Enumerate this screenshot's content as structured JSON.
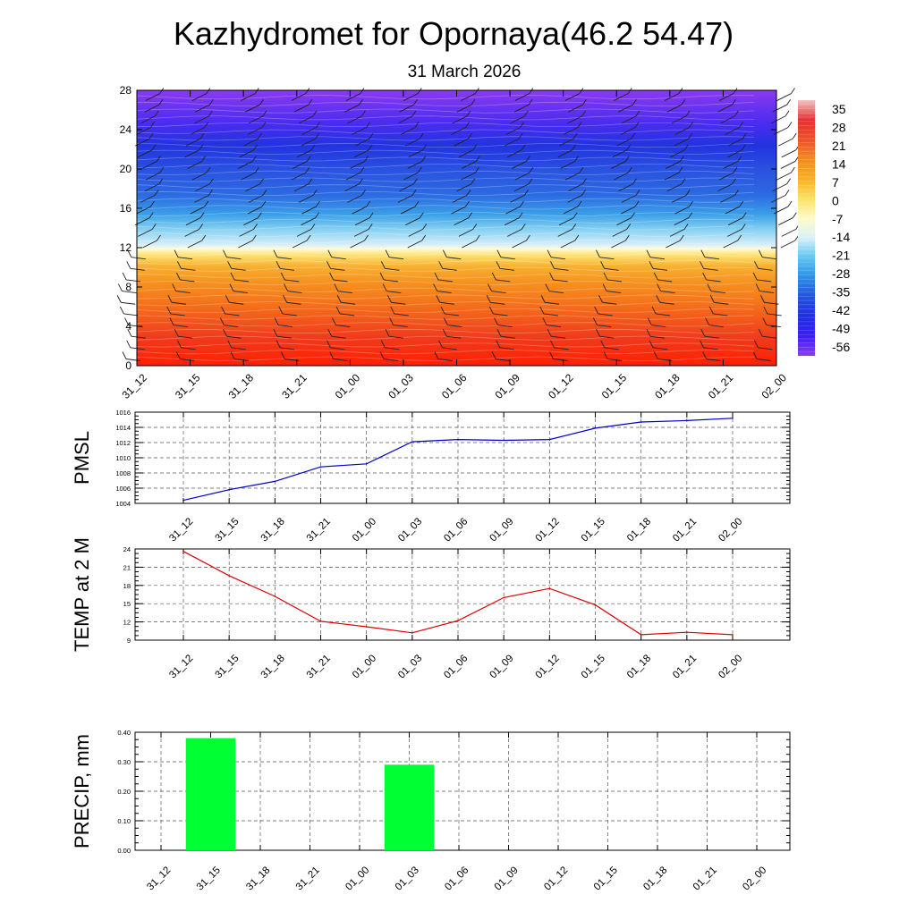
{
  "title": "Kazhydromet for Opornaya(46.2 54.47)",
  "subtitle": "31 March 2026",
  "chart_data": [
    {
      "type": "heatmap",
      "ylim": [
        0,
        28
      ],
      "yticks": [
        "0",
        "4",
        "8",
        "12",
        "16",
        "20",
        "24",
        "28"
      ],
      "x_tick_labels": [
        "31_12",
        "31_15",
        "31_18",
        "31_21",
        "01_00",
        "01_03",
        "01_06",
        "01_09",
        "01_12",
        "01_15",
        "01_18",
        "01_21",
        "02_00"
      ],
      "colorbar_labels": [
        "35",
        "28",
        "21",
        "14",
        "7",
        "0",
        "-7",
        "-14",
        "-21",
        "-28",
        "-35",
        "-42",
        "-49",
        "-56"
      ],
      "colorbar_stops": [
        "#f2c2c2",
        "#e63030",
        "#f0502a",
        "#f38a1e",
        "#f7b020",
        "#fbe260",
        "#fffbc8",
        "#d9f1fb",
        "#5fc5f0",
        "#2a8fe8",
        "#2453e0",
        "#1e2fe0",
        "#3a1ef0",
        "#8a3cf0"
      ],
      "grid": false,
      "wind_barbs": true
    },
    {
      "type": "line",
      "ylabel": "PMSL",
      "ylim": [
        1004,
        1016
      ],
      "yticks": [
        "1004",
        "1006",
        "1008",
        "1010",
        "1012",
        "1014",
        "1016"
      ],
      "categories": [
        "31_12",
        "31_15",
        "31_18",
        "31_21",
        "01_00",
        "01_03",
        "01_06",
        "01_09",
        "01_12",
        "01_15",
        "01_18",
        "01_21",
        "02_00"
      ],
      "values": [
        1004.4,
        1005.8,
        1006.9,
        1008.8,
        1009.2,
        1012.1,
        1012.4,
        1012.3,
        1012.4,
        1013.9,
        1014.7,
        1014.9,
        1015.2
      ],
      "color": "#0000cc",
      "grid": true
    },
    {
      "type": "line",
      "ylabel": "TEMP at 2 M",
      "ylim": [
        9,
        24
      ],
      "yticks": [
        "9",
        "12",
        "15",
        "18",
        "21",
        "24"
      ],
      "categories": [
        "31_12",
        "31_15",
        "31_18",
        "31_21",
        "01_00",
        "01_03",
        "01_06",
        "01_09",
        "01_12",
        "01_15",
        "01_18",
        "01_21",
        "02_00"
      ],
      "values": [
        23.6,
        19.6,
        16.2,
        12.1,
        11.2,
        10.2,
        12.2,
        16.0,
        17.5,
        14.8,
        9.9,
        10.3,
        9.9
      ],
      "color": "#dd0000",
      "grid": true
    },
    {
      "type": "bar",
      "ylabel": "PRECIP, mm",
      "ylim": [
        0,
        0.4
      ],
      "yticks": [
        "0.00",
        "0.10",
        "0.20",
        "0.30",
        "0.40"
      ],
      "categories": [
        "31_12",
        "31_15",
        "31_18",
        "31_21",
        "01_00",
        "01_03",
        "01_06",
        "01_09",
        "01_12",
        "01_15",
        "01_18",
        "01_21",
        "02_00"
      ],
      "values": [
        0,
        0.38,
        0,
        0,
        0,
        0.29,
        0,
        0,
        0,
        0,
        0,
        0,
        0
      ],
      "color": "#00ff33",
      "grid": true
    }
  ]
}
